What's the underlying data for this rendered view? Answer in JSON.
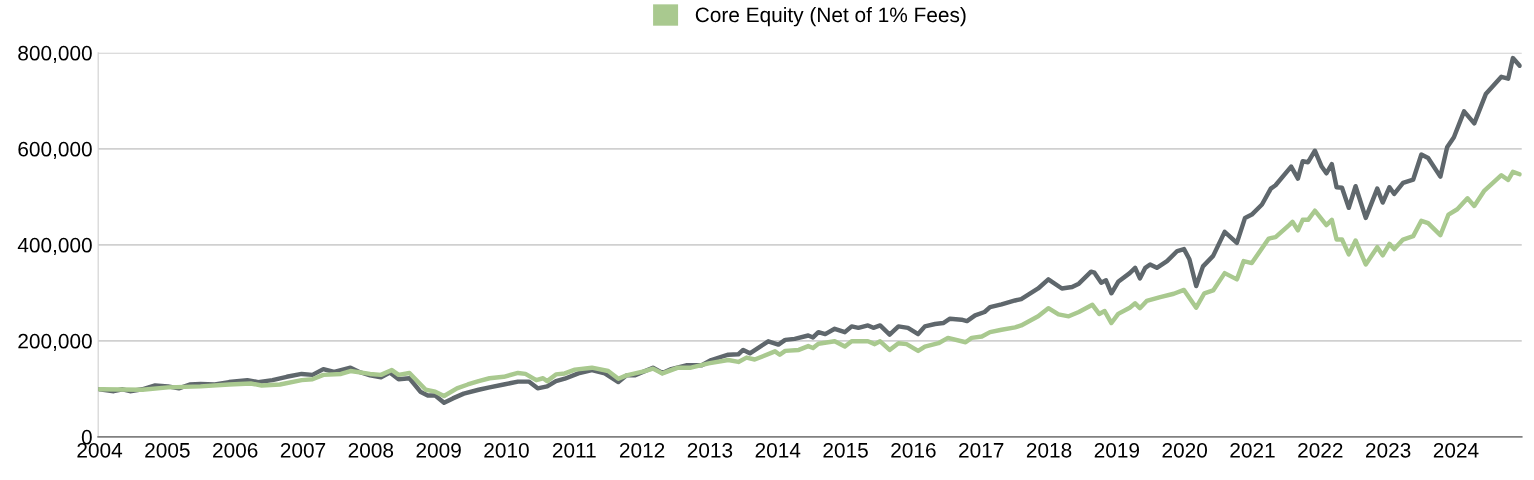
{
  "chart_data": {
    "type": "line",
    "series": [
      {
        "name": "Core Equity (Net of 1% Fees)",
        "color": "#a9c98f",
        "x": [
          2004.0,
          2004.63,
          2005.01,
          2005.49,
          2005.91,
          2006.23,
          2006.39,
          2006.66,
          2006.98,
          2007.14,
          2007.3,
          2007.56,
          2007.7,
          2007.99,
          2008.15,
          2008.31,
          2008.41,
          2008.57,
          2008.81,
          2008.95,
          2009.08,
          2009.27,
          2009.43,
          2009.59,
          2009.75,
          2009.96,
          2010.17,
          2010.28,
          2010.44,
          2010.54,
          2010.6,
          2010.73,
          2010.86,
          2011.01,
          2011.26,
          2011.5,
          2011.65,
          2011.77,
          2012.04,
          2012.16,
          2012.3,
          2012.53,
          2012.72,
          2012.98,
          2013.27,
          2013.42,
          2013.54,
          2013.66,
          2013.96,
          2014.03,
          2014.11,
          2014.31,
          2014.45,
          2014.52,
          2014.6,
          2014.84,
          2014.99,
          2015.09,
          2015.33,
          2015.43,
          2015.51,
          2015.65,
          2015.78,
          2015.9,
          2016.07,
          2016.17,
          2016.37,
          2016.51,
          2016.77,
          2016.86,
          2017.01,
          2017.13,
          2017.3,
          2017.5,
          2017.59,
          2017.84,
          2017.99,
          2018.14,
          2018.29,
          2018.44,
          2018.64,
          2018.74,
          2018.82,
          2018.92,
          2019.02,
          2019.19,
          2019.27,
          2019.34,
          2019.44,
          2019.64,
          2019.84,
          2019.99,
          2020.17,
          2020.29,
          2020.42,
          2020.59,
          2020.77,
          2020.87,
          2020.99,
          2021.24,
          2021.34,
          2021.54,
          2021.59,
          2021.67,
          2021.74,
          2021.82,
          2021.92,
          2022.09,
          2022.17,
          2022.24,
          2022.32,
          2022.42,
          2022.52,
          2022.67,
          2022.84,
          2022.92,
          2023.02,
          2023.09,
          2023.22,
          2023.37,
          2023.49,
          2023.59,
          2023.77,
          2023.89,
          2024.02,
          2024.17,
          2024.27,
          2024.42,
          2024.67,
          2024.77,
          2024.84,
          2024.94
        ],
        "values": [
          99000,
          98000,
          103000,
          105000,
          109000,
          111000,
          107000,
          109000,
          118000,
          120000,
          129000,
          131000,
          137000,
          131000,
          129000,
          139000,
          129000,
          133000,
          98000,
          94000,
          85000,
          101000,
          109000,
          116000,
          122000,
          125000,
          133000,
          131000,
          118000,
          122000,
          116000,
          130000,
          132000,
          140000,
          144000,
          137000,
          121000,
          128000,
          137000,
          142000,
          132000,
          144000,
          144000,
          153000,
          160000,
          156000,
          165000,
          161000,
          178000,
          171000,
          179000,
          181000,
          189000,
          185000,
          194000,
          199000,
          188000,
          199000,
          199000,
          193000,
          199000,
          181000,
          195000,
          193000,
          179000,
          188000,
          195000,
          206000,
          197000,
          206000,
          209000,
          218000,
          223000,
          228000,
          232000,
          251000,
          268000,
          255000,
          251000,
          260000,
          275000,
          256000,
          262000,
          237000,
          256000,
          269000,
          278000,
          268000,
          283000,
          291000,
          298000,
          306000,
          269000,
          299000,
          305000,
          341000,
          328000,
          366000,
          362000,
          413000,
          416000,
          441000,
          448000,
          430000,
          452000,
          452000,
          471000,
          441000,
          452000,
          411000,
          411000,
          380000,
          409000,
          359000,
          395000,
          378000,
          402000,
          391000,
          411000,
          418000,
          450000,
          445000,
          420000,
          463000,
          474000,
          497000,
          481000,
          513000,
          545000,
          535000,
          552000,
          547000
        ]
      },
      {
        "color": "#5f676c",
        "x": [
          2004.0,
          2004.21,
          2004.34,
          2004.45,
          2004.63,
          2004.82,
          2005.01,
          2005.17,
          2005.33,
          2005.49,
          2005.7,
          2005.91,
          2006.18,
          2006.34,
          2006.55,
          2006.76,
          2006.98,
          2007.14,
          2007.3,
          2007.46,
          2007.7,
          2007.83,
          2007.99,
          2008.15,
          2008.28,
          2008.41,
          2008.57,
          2008.73,
          2008.84,
          2008.95,
          2009.08,
          2009.21,
          2009.37,
          2009.59,
          2009.75,
          2009.96,
          2010.17,
          2010.33,
          2010.46,
          2010.6,
          2010.73,
          2010.86,
          2011.06,
          2011.26,
          2011.45,
          2011.65,
          2011.77,
          2011.89,
          2012.16,
          2012.3,
          2012.43,
          2012.65,
          2012.88,
          2013.02,
          2013.27,
          2013.42,
          2013.49,
          2013.59,
          2013.86,
          2014.01,
          2014.11,
          2014.25,
          2014.45,
          2014.52,
          2014.6,
          2014.7,
          2014.84,
          2014.99,
          2015.09,
          2015.19,
          2015.33,
          2015.41,
          2015.51,
          2015.65,
          2015.78,
          2015.92,
          2016.07,
          2016.17,
          2016.32,
          2016.44,
          2016.54,
          2016.71,
          2016.79,
          2016.91,
          2017.05,
          2017.13,
          2017.3,
          2017.5,
          2017.59,
          2017.84,
          2017.99,
          2018.19,
          2018.34,
          2018.44,
          2018.62,
          2018.67,
          2018.77,
          2018.84,
          2018.92,
          2019.02,
          2019.19,
          2019.27,
          2019.34,
          2019.42,
          2019.49,
          2019.59,
          2019.74,
          2019.89,
          2019.99,
          2020.07,
          2020.17,
          2020.27,
          2020.42,
          2020.59,
          2020.77,
          2020.89,
          2020.99,
          2021.14,
          2021.27,
          2021.34,
          2021.57,
          2021.67,
          2021.74,
          2021.82,
          2021.92,
          2022.02,
          2022.09,
          2022.17,
          2022.24,
          2022.32,
          2022.42,
          2022.52,
          2022.67,
          2022.84,
          2022.92,
          2023.02,
          2023.09,
          2023.22,
          2023.37,
          2023.49,
          2023.59,
          2023.77,
          2023.87,
          2023.97,
          2024.12,
          2024.27,
          2024.44,
          2024.67,
          2024.77,
          2024.84,
          2024.94
        ],
        "values": [
          99000,
          95000,
          99000,
          95000,
          99000,
          107000,
          105000,
          101000,
          109000,
          110000,
          109000,
          114000,
          118000,
          114000,
          118000,
          125000,
          131000,
          129000,
          141000,
          135000,
          144000,
          135000,
          128000,
          124000,
          134000,
          120000,
          122000,
          94000,
          86000,
          86000,
          71000,
          80000,
          90000,
          98000,
          103000,
          109000,
          115000,
          115000,
          101000,
          105000,
          116000,
          121000,
          132000,
          139000,
          132000,
          114000,
          128000,
          128000,
          144000,
          133000,
          141000,
          149000,
          149000,
          160000,
          171000,
          172000,
          181000,
          174000,
          199000,
          192000,
          202000,
          204000,
          211000,
          207000,
          218000,
          214000,
          225000,
          218000,
          230000,
          227000,
          232000,
          227000,
          232000,
          213000,
          230000,
          227000,
          214000,
          230000,
          235000,
          237000,
          246000,
          244000,
          241000,
          253000,
          260000,
          270000,
          276000,
          284000,
          287000,
          309000,
          328000,
          309000,
          312000,
          319000,
          344000,
          342000,
          321000,
          326000,
          299000,
          323000,
          341000,
          352000,
          330000,
          352000,
          359000,
          352000,
          366000,
          387000,
          391000,
          370000,
          314000,
          355000,
          377000,
          427000,
          404000,
          456000,
          463000,
          484000,
          517000,
          524000,
          563000,
          538000,
          574000,
          572000,
          596000,
          563000,
          549000,
          568000,
          520000,
          519000,
          477000,
          522000,
          456000,
          517000,
          488000,
          520000,
          506000,
          529000,
          536000,
          588000,
          581000,
          542000,
          603000,
          624000,
          678000,
          653000,
          714000,
          750000,
          746000,
          789000,
          773000
        ]
      }
    ],
    "xlim": [
      2003.98,
      2024.97
    ],
    "xticks": [
      2004,
      2005,
      2006,
      2007,
      2008,
      2009,
      2010,
      2011,
      2012,
      2013,
      2014,
      2015,
      2016,
      2017,
      2018,
      2019,
      2020,
      2021,
      2022,
      2023,
      2024
    ],
    "ylim": [
      0,
      800000
    ],
    "yticks": [
      {
        "value": 0,
        "label": "0"
      },
      {
        "value": 200000,
        "label": "200,000"
      },
      {
        "value": 400000,
        "label": "400,000"
      },
      {
        "value": 600000,
        "label": "600,000"
      },
      {
        "value": 800000,
        "label": "800,000"
      }
    ],
    "grid": "y",
    "legend": "top",
    "marker": "none",
    "line_style": "solid"
  }
}
